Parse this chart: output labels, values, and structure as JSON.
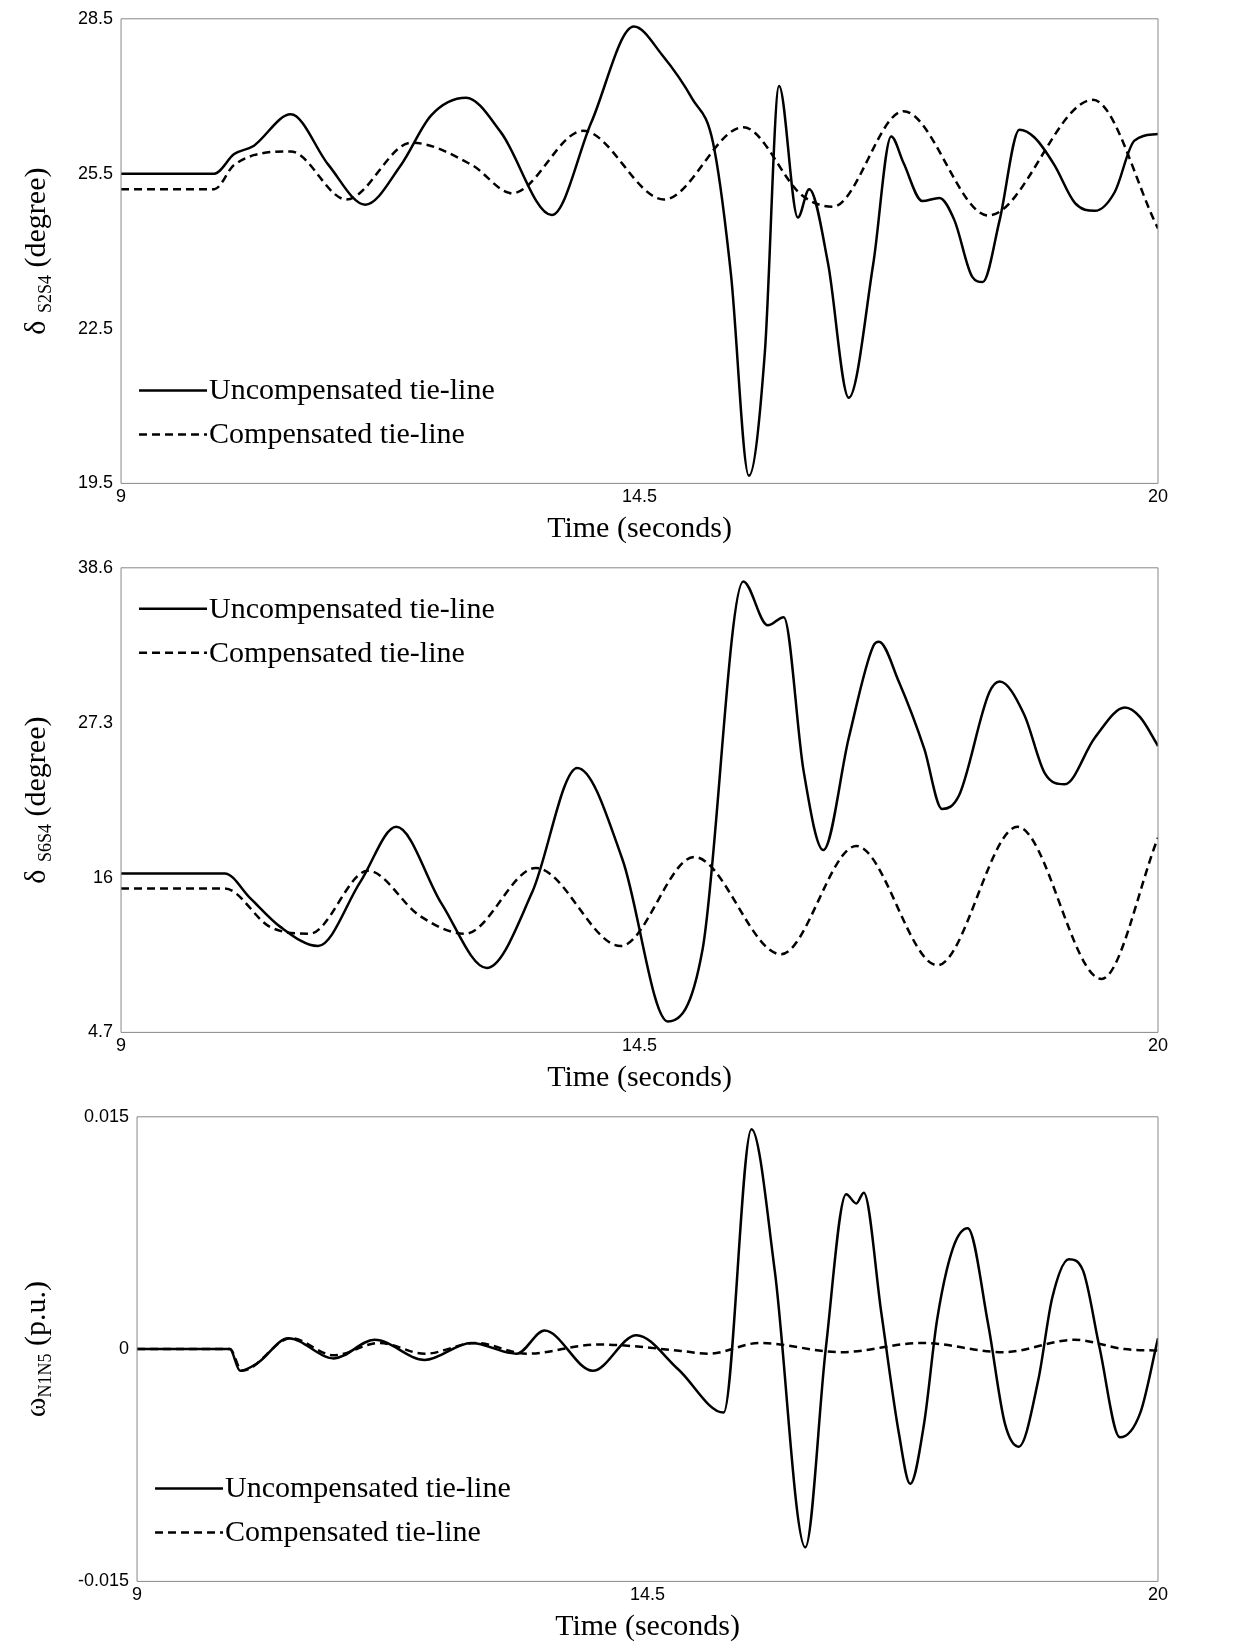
{
  "chart_data": [
    {
      "type": "line",
      "xlabel": "Time (seconds)",
      "ylabel": "δ $_{S2S4}$ (degree)",
      "xlim": [
        9,
        20
      ],
      "xticks": [
        9,
        14.5,
        20
      ],
      "ylim": [
        19.5,
        28.5
      ],
      "yticks": [
        19.5,
        22.5,
        25.5,
        28.5
      ],
      "legend": "bottom left",
      "grid": false,
      "marker": "none",
      "series": [
        {
          "name": "Uncompensated tie-line",
          "color": "#000000",
          "line_style": "solid",
          "x": [
            9,
            9.99,
            10.2,
            10.4,
            10.8,
            11.2,
            11.59,
            11.97,
            12.29,
            12.66,
            13.03,
            13.57,
            13.99,
            14.44,
            14.74,
            15.06,
            15.28,
            15.47,
            15.66,
            15.83,
            15.98,
            16.18,
            16.3,
            16.5,
            16.72,
            16.98,
            17.17,
            17.3,
            17.5,
            17.68,
            17.84,
            18.03,
            18.14,
            18.32,
            18.53,
            18.69,
            18.9,
            19.12,
            19.33,
            19.54,
            19.75,
            20
          ],
          "values": [
            25.5,
            25.5,
            25.88,
            26.03,
            26.65,
            25.67,
            24.9,
            25.67,
            26.63,
            26.97,
            26.3,
            24.7,
            26.5,
            28.35,
            27.8,
            26.95,
            26.1,
            23.55,
            19.65,
            22.05,
            27.2,
            24.65,
            25.2,
            23.76,
            21.16,
            23.76,
            26.22,
            25.71,
            24.97,
            25.03,
            24.6,
            23.5,
            23.4,
            24.6,
            26.35,
            26.2,
            25.67,
            24.93,
            24.78,
            25.14,
            26.14,
            26.27
          ]
        },
        {
          "name": "Compensated tie-line",
          "color": "#000000",
          "line_style": "dashed",
          "x": [
            9,
            9.99,
            10.2,
            10.8,
            11.39,
            12.08,
            12.72,
            13.15,
            13.9,
            14.76,
            15.6,
            16.23,
            16.55,
            17.3,
            18.2,
            19.31,
            20
          ],
          "values": [
            25.2,
            25.2,
            25.67,
            25.93,
            25.0,
            26.1,
            25.67,
            25.12,
            26.33,
            25.0,
            26.4,
            25.07,
            24.86,
            26.71,
            24.69,
            26.93,
            24.44
          ]
        }
      ]
    },
    {
      "type": "line",
      "xlabel": "Time (seconds)",
      "ylabel": "δ $_{S6S4}$ (degree)",
      "xlim": [
        9,
        20
      ],
      "xticks": [
        9,
        14.5,
        20
      ],
      "ylim": [
        4.7,
        38.6
      ],
      "yticks": [
        4.7,
        16,
        27.3,
        38.6
      ],
      "legend": "top left",
      "grid": false,
      "marker": "none",
      "series": [
        {
          "name": "Uncompensated tie-line",
          "color": "#000000",
          "line_style": "solid",
          "x": [
            9,
            10.1,
            10.37,
            10.69,
            11.09,
            11.54,
            11.92,
            12.4,
            12.88,
            13.36,
            13.84,
            14.32,
            14.8,
            15.17,
            15.6,
            15.86,
            16.03,
            16.24,
            16.45,
            16.72,
            16.98,
            17.04,
            17.25,
            17.52,
            17.71,
            17.89,
            18.21,
            18.32,
            18.58,
            18.8,
            19.01,
            19.33,
            19.65,
            19.81,
            20
          ],
          "values": [
            16.3,
            16.3,
            14.5,
            12.4,
            11.0,
            15.7,
            19.7,
            14.1,
            9.4,
            14.9,
            24.0,
            17.3,
            5.5,
            10.8,
            37.6,
            34.4,
            35.0,
            23.8,
            18.0,
            26.2,
            32.9,
            33.2,
            30.3,
            25.4,
            21.0,
            22.0,
            29.5,
            30.3,
            27.9,
            23.6,
            22.8,
            26.2,
            28.4,
            27.7,
            25.6
          ]
        },
        {
          "name": "Compensated tie-line",
          "color": "#000000",
          "line_style": "dashed",
          "x": [
            9,
            10.1,
            10.58,
            11.0,
            11.62,
            12.17,
            12.65,
            13.4,
            14.3,
            15.08,
            16.0,
            16.8,
            17.66,
            18.51,
            19.4,
            20
          ],
          "values": [
            15.2,
            15.2,
            12.4,
            11.9,
            16.5,
            13.2,
            11.9,
            16.7,
            11.0,
            17.5,
            10.4,
            18.3,
            9.6,
            19.7,
            8.6,
            18.9
          ]
        }
      ]
    },
    {
      "type": "line",
      "xlabel": "Time (seconds)",
      "ylabel": "ω$_{N1N5}$ (p.u.)",
      "xlim": [
        9,
        20
      ],
      "xticks": [
        9,
        14.5,
        20
      ],
      "ylim": [
        -0.015,
        0.015
      ],
      "yticks": [
        -0.015,
        0,
        0.015
      ],
      "legend": "bottom left",
      "grid": false,
      "marker": "none",
      "series": [
        {
          "name": "Uncompensated tie-line",
          "color": "#000000",
          "line_style": "solid",
          "x": [
            9,
            10.0,
            10.11,
            10.3,
            10.63,
            11.12,
            11.56,
            12.1,
            12.6,
            13.09,
            13.39,
            13.91,
            14.38,
            14.83,
            15.32,
            15.62,
            15.87,
            16.2,
            16.42,
            16.64,
            16.75,
            16.83,
            17.02,
            17.21,
            17.33,
            17.48,
            17.62,
            17.79,
            17.95,
            18.17,
            18.35,
            18.5,
            18.71,
            18.86,
            19.04,
            19.19,
            19.37,
            19.59,
            19.81,
            20
          ],
          "values": [
            0,
            0,
            -0.0014,
            -0.0009,
            0.0007,
            -0.0006,
            0.0006,
            -0.0007,
            0.0004,
            -0.0003,
            0.0012,
            -0.0014,
            0.0009,
            -0.0013,
            -0.0041,
            0.0142,
            0.0051,
            -0.0128,
            0,
            0.01,
            0.0094,
            0.0101,
            0.0023,
            -0.0055,
            -0.0087,
            -0.0048,
            0.0019,
            0.0065,
            0.0078,
            0.0016,
            -0.0048,
            -0.0063,
            -0.002,
            0.0033,
            0.0058,
            0.0051,
            0.0001,
            -0.0057,
            -0.0041,
            0.0007
          ]
        },
        {
          "name": "Compensated tie-line",
          "color": "#000000",
          "line_style": "dashed",
          "x": [
            9,
            10.0,
            10.13,
            10.66,
            11.12,
            11.61,
            12.1,
            12.65,
            13.2,
            13.96,
            14.84,
            15.16,
            15.71,
            16.58,
            17.46,
            18.33,
            19.1,
            19.64,
            20
          ],
          "values": [
            0,
            0,
            -0.0014,
            0.0007,
            -0.0004,
            0.0004,
            -0.0003,
            0.0004,
            -0.0003,
            0.0003,
            -0.0001,
            -0.0003,
            0.0004,
            -0.0002,
            0.0004,
            -0.0002,
            0.0006,
            0,
            -0.0001
          ]
        }
      ]
    }
  ]
}
